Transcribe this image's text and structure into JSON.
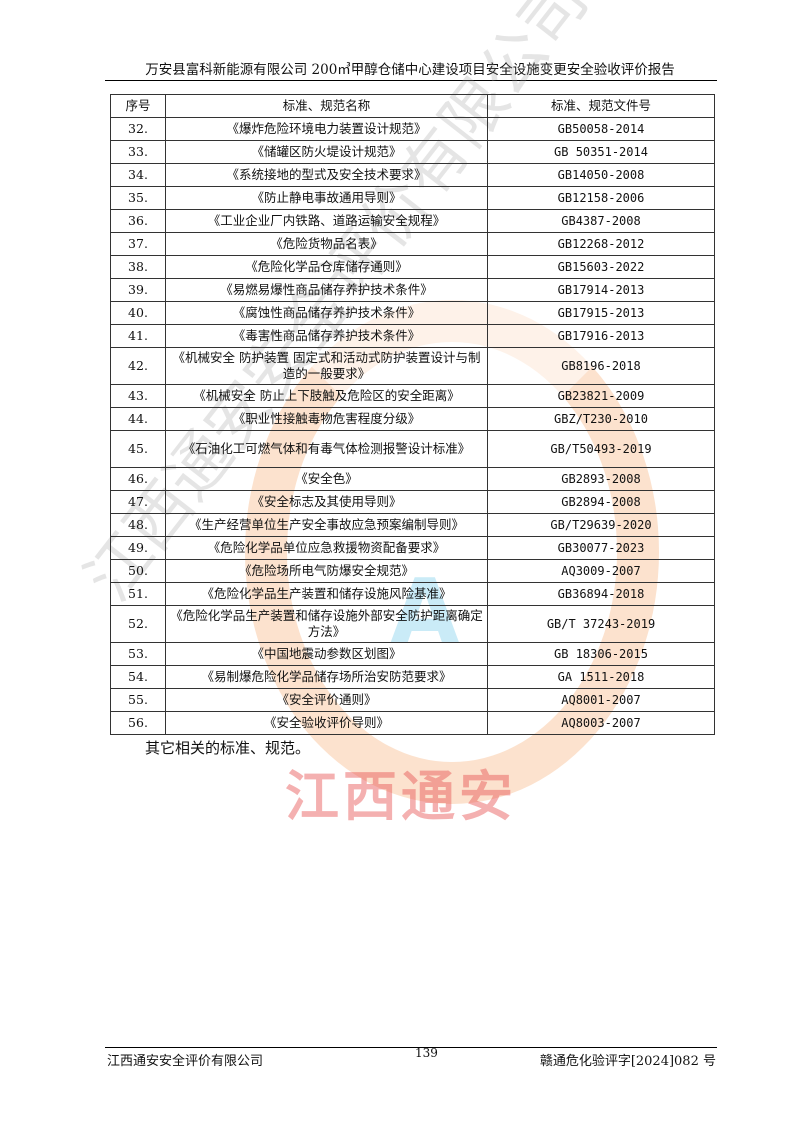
{
  "header": {
    "title": "万安县富科新能源有限公司 200㎥甲醇仓储中心建设项目安全设施变更安全验收评价报告"
  },
  "table": {
    "columns": [
      "序号",
      "标准、规范名称",
      "标准、规范文件号"
    ],
    "rows": [
      {
        "no": "32.",
        "name": "《爆炸危险环境电力装置设计规范》",
        "code": "GB50058-2014"
      },
      {
        "no": "33.",
        "name": "《储罐区防火堤设计规范》",
        "code": "GB 50351-2014"
      },
      {
        "no": "34.",
        "name": "《系统接地的型式及安全技术要求》",
        "code": "GB14050-2008"
      },
      {
        "no": "35.",
        "name": "《防止静电事故通用导则》",
        "code": "GB12158-2006"
      },
      {
        "no": "36.",
        "name": "《工业企业厂内铁路、道路运输安全规程》",
        "code": "GB4387-2008"
      },
      {
        "no": "37.",
        "name": "《危险货物品名表》",
        "code": "GB12268-2012"
      },
      {
        "no": "38.",
        "name": "《危险化学品仓库储存通则》",
        "code": "GB15603-2022"
      },
      {
        "no": "39.",
        "name": "《易燃易爆性商品储存养护技术条件》",
        "code": "GB17914-2013"
      },
      {
        "no": "40.",
        "name": "《腐蚀性商品储存养护技术条件》",
        "code": "GB17915-2013"
      },
      {
        "no": "41.",
        "name": "《毒害性商品储存养护技术条件》",
        "code": "GB17916-2013"
      },
      {
        "no": "42.",
        "name": "《机械安全 防护装置 固定式和活动式防护装置设计与制造的一般要求》",
        "code": "GB8196-2018",
        "double": true
      },
      {
        "no": "43.",
        "name": "《机械安全 防止上下肢触及危险区的安全距离》",
        "code": "GB23821-2009"
      },
      {
        "no": "44.",
        "name": "《职业性接触毒物危害程度分级》",
        "code": "GBZ/T230-2010"
      },
      {
        "no": "45.",
        "name": "《石油化工可燃气体和有毒气体检测报警设计标准》",
        "code": "GB/T50493-2019",
        "double": true
      },
      {
        "no": "46.",
        "name": "《安全色》",
        "code": "GB2893-2008"
      },
      {
        "no": "47.",
        "name": "《安全标志及其使用导则》",
        "code": "GB2894-2008"
      },
      {
        "no": "48.",
        "name": "《生产经营单位生产安全事故应急预案编制导则》",
        "code": "GB/T29639-2020"
      },
      {
        "no": "49.",
        "name": "《危险化学品单位应急救援物资配备要求》",
        "code": "GB30077-2023"
      },
      {
        "no": "50.",
        "name": "《危险场所电气防爆安全规范》",
        "code": "AQ3009-2007"
      },
      {
        "no": "51.",
        "name": "《危险化学品生产装置和储存设施风险基准》",
        "code": "GB36894-2018"
      },
      {
        "no": "52.",
        "name": "《危险化学品生产装置和储存设施外部安全防护距离确定方法》",
        "code": "GB/T 37243-2019",
        "double": true
      },
      {
        "no": "53.",
        "name": "《中国地震动参数区划图》",
        "code": "GB 18306-2015"
      },
      {
        "no": "54.",
        "name": "《易制爆危险化学品储存场所治安防范要求》",
        "code": "GA 1511-2018"
      },
      {
        "no": "55.",
        "name": "《安全评价通则》",
        "code": "AQ8001-2007"
      },
      {
        "no": "56.",
        "name": "《安全验收评价导则》",
        "code": "AQ8003-2007"
      }
    ]
  },
  "other_text": "其它相关的标准、规范。",
  "watermark": {
    "diagonal": "江西通安安全评价有限公司",
    "red": "江西通安",
    "logo_letter": "A",
    "colors": {
      "ring": "#f59650",
      "letter": "#50bee6",
      "red": "#e65050"
    }
  },
  "footer": {
    "company": "江西通安安全评价有限公司",
    "page": "139",
    "doc_no": "赣通危化验评字[2024]082 号"
  }
}
